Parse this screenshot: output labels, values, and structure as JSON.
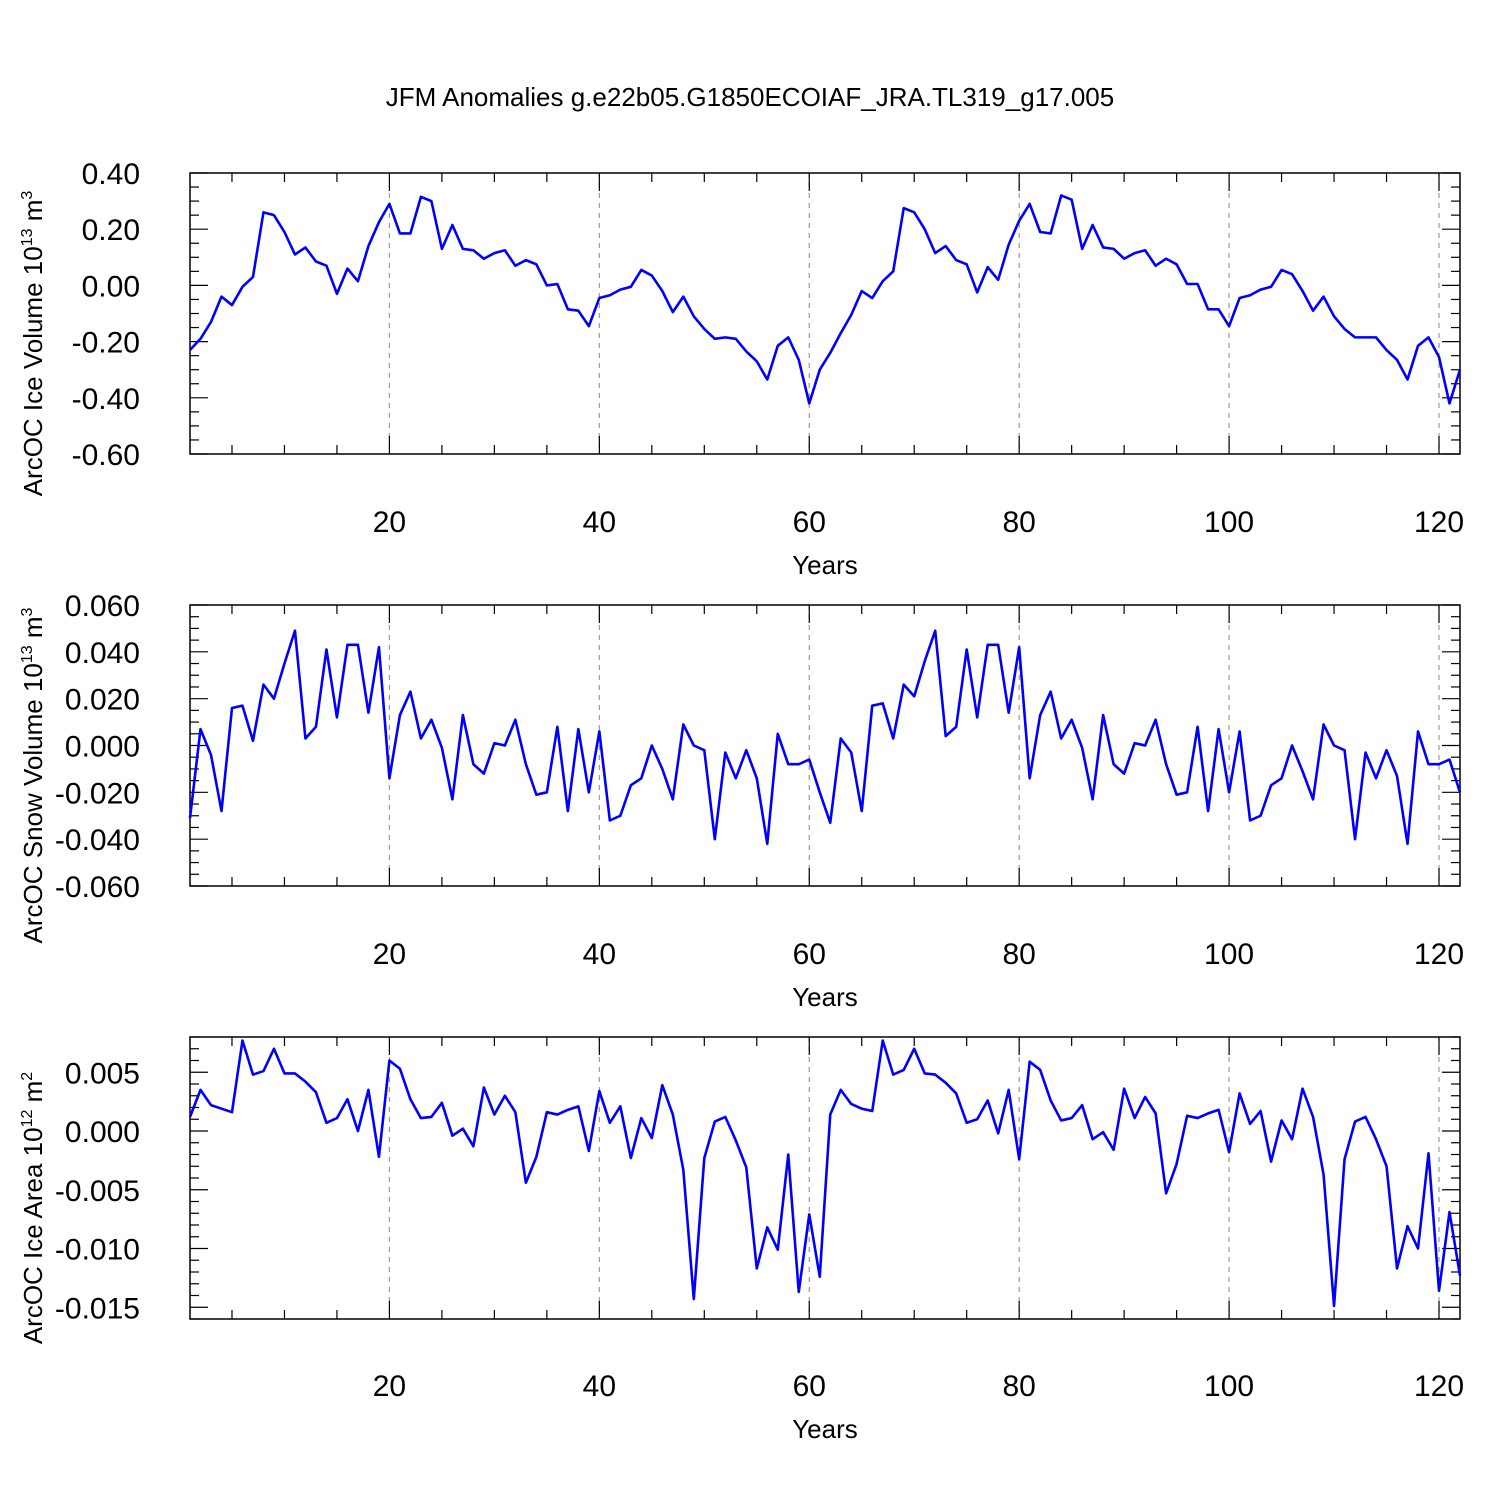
{
  "title": "JFM Anomalies g.e22b05.G1850ECOIAF_JRA.TL319_g17.005",
  "line_color": "#0000ff",
  "grid_color": "#9a9a9a",
  "chart_data": [
    {
      "type": "line",
      "title": "JFM Anomalies g.e22b05.G1850ECOIAF_JRA.TL319_g17.005",
      "xlabel": "Years",
      "ylabel": "ArcOC Ice Volume 10^13 m^3",
      "xlim": [
        1,
        122
      ],
      "ylim": [
        -0.6,
        0.4
      ],
      "x_ticks": [
        20,
        40,
        60,
        80,
        100,
        120
      ],
      "y_ticks": [
        "0.40",
        "0.20",
        "0.00",
        "-0.20",
        "-0.40",
        "-0.60"
      ],
      "y_tick_values": [
        0.4,
        0.2,
        0.0,
        -0.2,
        -0.4,
        -0.6
      ],
      "grid": "vertical dashed at x ticks",
      "series": [
        {
          "values": [
            -0.23,
            -0.19,
            -0.13,
            -0.04,
            -0.07,
            -0.005,
            0.03,
            0.26,
            0.25,
            0.19,
            0.11,
            0.135,
            0.085,
            0.07,
            -0.03,
            0.06,
            0.015,
            0.14,
            0.225,
            0.29,
            0.185,
            0.185,
            0.315,
            0.3,
            0.13,
            0.215,
            0.13,
            0.125,
            0.095,
            0.115,
            0.125,
            0.07,
            0.09,
            0.075,
            0.0,
            0.005,
            -0.085,
            -0.09,
            -0.145,
            -0.045,
            -0.035,
            -0.015,
            -0.005,
            0.055,
            0.035,
            -0.02,
            -0.095,
            -0.04,
            -0.11,
            -0.155,
            -0.19,
            -0.185,
            -0.19,
            -0.235,
            -0.27,
            -0.335,
            -0.215,
            -0.185,
            -0.265,
            -0.42,
            -0.3,
            -0.24,
            -0.17,
            -0.105,
            -0.02,
            -0.045,
            0.015,
            0.05,
            0.275,
            0.26,
            0.2,
            0.115,
            0.14,
            0.09,
            0.075,
            -0.025,
            0.065,
            0.02,
            0.145,
            0.23,
            0.29,
            0.19,
            0.185,
            0.32,
            0.305,
            0.13,
            0.215,
            0.135,
            0.13,
            0.095,
            0.115,
            0.125,
            0.07,
            0.095,
            0.075,
            0.005,
            0.005,
            -0.085,
            -0.085,
            -0.145,
            -0.045,
            -0.035,
            -0.015,
            -0.005,
            0.055,
            0.04,
            -0.02,
            -0.09,
            -0.04,
            -0.11,
            -0.155,
            -0.185,
            -0.185,
            -0.185,
            -0.23,
            -0.265,
            -0.335,
            -0.215,
            -0.185,
            -0.255,
            -0.42,
            -0.3
          ]
        }
      ]
    },
    {
      "type": "line",
      "xlabel": "Years",
      "ylabel": "ArcOC Snow Volume 10^13 m^3",
      "xlim": [
        1,
        122
      ],
      "ylim": [
        -0.06,
        0.06
      ],
      "x_ticks": [
        20,
        40,
        60,
        80,
        100,
        120
      ],
      "y_ticks": [
        "0.060",
        "0.040",
        "0.020",
        "0.000",
        "-0.020",
        "-0.040",
        "-0.060"
      ],
      "y_tick_values": [
        0.06,
        0.04,
        0.02,
        0.0,
        -0.02,
        -0.04,
        -0.06
      ],
      "grid": "vertical dashed at x ticks",
      "series": [
        {
          "values": [
            -0.031,
            0.007,
            -0.004,
            -0.028,
            0.016,
            0.017,
            0.002,
            0.026,
            0.02,
            0.035,
            0.049,
            0.003,
            0.008,
            0.041,
            0.012,
            0.043,
            0.043,
            0.014,
            0.042,
            -0.014,
            0.013,
            0.023,
            0.003,
            0.011,
            -0.001,
            -0.023,
            0.013,
            -0.008,
            -0.012,
            0.001,
            0.0,
            0.011,
            -0.008,
            -0.021,
            -0.02,
            0.008,
            -0.028,
            0.007,
            -0.02,
            0.006,
            -0.032,
            -0.03,
            -0.017,
            -0.014,
            0.0,
            -0.01,
            -0.023,
            0.009,
            0.0,
            -0.002,
            -0.04,
            -0.003,
            -0.014,
            -0.002,
            -0.014,
            -0.042,
            0.005,
            -0.008,
            -0.008,
            -0.006,
            -0.02,
            -0.033,
            0.003,
            -0.003,
            -0.028,
            0.017,
            0.018,
            0.003,
            0.026,
            0.021,
            0.036,
            0.049,
            0.004,
            0.008,
            0.041,
            0.012,
            0.043,
            0.043,
            0.014,
            0.042,
            -0.014,
            0.013,
            0.023,
            0.003,
            0.011,
            -0.001,
            -0.023,
            0.013,
            -0.008,
            -0.012,
            0.001,
            0.0,
            0.011,
            -0.008,
            -0.021,
            -0.02,
            0.008,
            -0.028,
            0.007,
            -0.02,
            0.006,
            -0.032,
            -0.03,
            -0.017,
            -0.014,
            0.0,
            -0.011,
            -0.023,
            0.009,
            0.0,
            -0.002,
            -0.04,
            -0.003,
            -0.014,
            -0.002,
            -0.013,
            -0.042,
            0.006,
            -0.008,
            -0.008,
            -0.006,
            -0.02
          ]
        }
      ]
    },
    {
      "type": "line",
      "xlabel": "Years",
      "ylabel": "ArcOC Ice Area 10^12 m^2",
      "xlim": [
        1,
        122
      ],
      "ylim": [
        -0.016,
        0.008
      ],
      "x_ticks": [
        20,
        40,
        60,
        80,
        100,
        120
      ],
      "y_ticks": [
        "0.005",
        "0.000",
        "-0.005",
        "-0.010",
        "-0.015"
      ],
      "y_tick_values": [
        0.005,
        0.0,
        -0.005,
        -0.01,
        -0.015
      ],
      "grid": "vertical dashed at x ticks",
      "series": [
        {
          "values": [
            0.0012,
            0.0035,
            0.0022,
            0.0019,
            0.0016,
            0.0077,
            0.0048,
            0.0051,
            0.007,
            0.0049,
            0.0049,
            0.0042,
            0.0033,
            0.0007,
            0.0011,
            0.0027,
            0.0,
            0.0035,
            -0.0022,
            0.006,
            0.0053,
            0.0027,
            0.0011,
            0.0012,
            0.0024,
            -0.0004,
            0.0002,
            -0.0013,
            0.0037,
            0.0014,
            0.003,
            0.0016,
            -0.0044,
            -0.0022,
            0.0016,
            0.0014,
            0.0018,
            0.0021,
            -0.0017,
            0.0034,
            0.0007,
            0.0021,
            -0.0023,
            0.0011,
            -0.0006,
            0.0039,
            0.0014,
            -0.0033,
            -0.0143,
            -0.0023,
            0.0008,
            0.0012,
            -0.0008,
            -0.0031,
            -0.0117,
            -0.0082,
            -0.0101,
            -0.002,
            -0.0137,
            -0.0071,
            -0.0124,
            0.0014,
            0.0035,
            0.0023,
            0.0019,
            0.0017,
            0.0077,
            0.0048,
            0.0052,
            0.007,
            0.0049,
            0.0048,
            0.0041,
            0.0032,
            0.0007,
            0.001,
            0.0026,
            -0.0002,
            0.0035,
            -0.0024,
            0.0059,
            0.0052,
            0.0026,
            0.0009,
            0.0011,
            0.0022,
            -0.0007,
            -0.0001,
            -0.0016,
            0.0036,
            0.0011,
            0.0029,
            0.0015,
            -0.0053,
            -0.0028,
            0.0013,
            0.0011,
            0.0015,
            0.0018,
            -0.0018,
            0.0032,
            0.0006,
            0.0017,
            -0.0026,
            0.0009,
            -0.0007,
            0.0036,
            0.0012,
            -0.0037,
            -0.0149,
            -0.0024,
            0.0008,
            0.0012,
            -0.0007,
            -0.003,
            -0.0117,
            -0.0081,
            -0.01,
            -0.0019,
            -0.0136,
            -0.0069,
            -0.0123
          ]
        }
      ]
    }
  ]
}
